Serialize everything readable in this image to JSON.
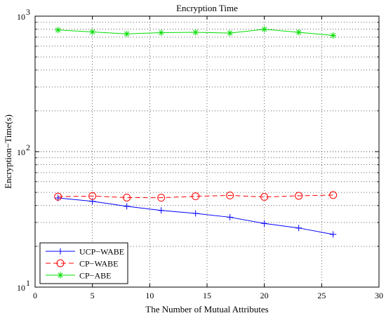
{
  "chart_data": {
    "type": "line",
    "title": "Encryption Time",
    "xlabel": "The Number of Mutual Attributes",
    "ylabel": "Encryption−Time(s)",
    "x_scale": "linear",
    "y_scale": "log",
    "xlim": [
      0,
      30
    ],
    "ylim": [
      10,
      1000
    ],
    "x_ticks": [
      0,
      5,
      10,
      15,
      20,
      25,
      30
    ],
    "x_tick_labels": [
      "0",
      "5",
      "10",
      "15",
      "20",
      "25",
      "30"
    ],
    "y_ticks": [
      10,
      100,
      1000
    ],
    "y_tick_base_labels": [
      "10",
      "10",
      "10"
    ],
    "y_tick_exponent_labels": [
      "1",
      "2",
      "3"
    ],
    "grid": true,
    "legend_position": "bottom-left",
    "x": [
      2,
      5,
      8,
      11,
      14,
      17,
      20,
      23,
      26
    ],
    "series": [
      {
        "name": "UCP−WABE",
        "color": "#0000ff",
        "line_style": "solid",
        "marker": "plus",
        "values": [
          45.5,
          43.0,
          39.5,
          36.8,
          35.0,
          32.8,
          29.5,
          27.3,
          24.5
        ]
      },
      {
        "name": "CP−WABE",
        "color": "#ff0000",
        "line_style": "dashed",
        "marker": "circle",
        "values": [
          46.5,
          47.0,
          45.8,
          45.7,
          46.8,
          47.5,
          46.3,
          47.2,
          47.8
        ]
      },
      {
        "name": "CP−ABE",
        "color": "#00dd00",
        "line_style": "solid",
        "marker": "star",
        "values": [
          790,
          765,
          740,
          755,
          760,
          750,
          800,
          760,
          720
        ]
      }
    ]
  }
}
